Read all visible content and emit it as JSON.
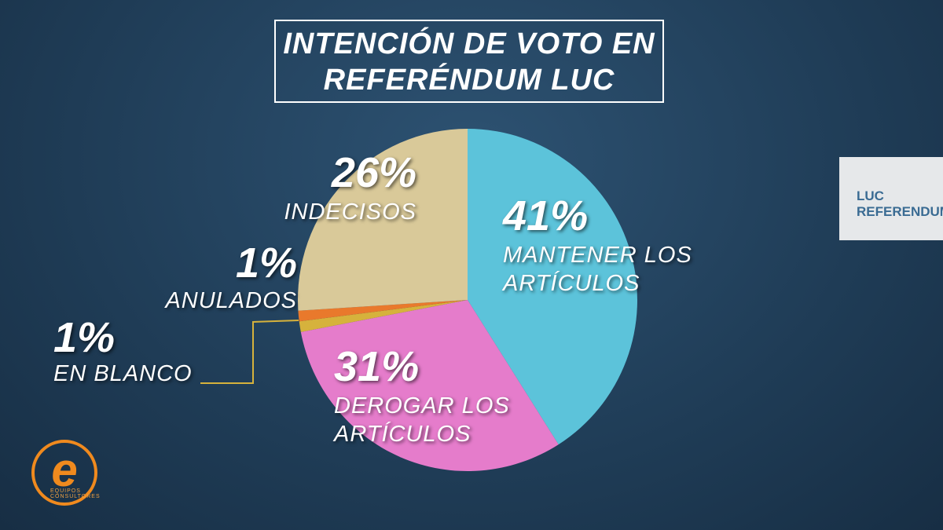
{
  "chart_data": {
    "type": "pie",
    "title": "INTENCIÓN DE VOTO EN REFERÉNDUM LUC",
    "categories": [
      "MANTENER LOS ARTÍCULOS",
      "DEROGAR LOS ARTÍCULOS",
      "EN BLANCO",
      "ANULADOS",
      "INDECISOS"
    ],
    "values": [
      41,
      31,
      1,
      1,
      26
    ],
    "value_labels": [
      "41%",
      "31%",
      "1%",
      "1%",
      "26%"
    ],
    "colors": [
      "#5cc3da",
      "#e57ccb",
      "#d6b23c",
      "#e9792c",
      "#d9c999"
    ],
    "badge": "LUC REFERENDUM",
    "source": "EQUIPOS CONSULTORES"
  }
}
